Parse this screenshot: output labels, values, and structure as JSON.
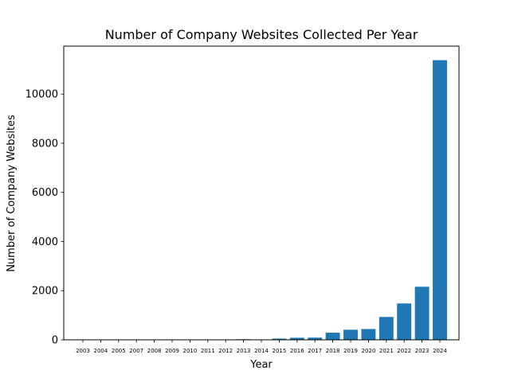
{
  "chart_data": {
    "type": "bar",
    "title": "Number of Company Websites Collected Per Year",
    "xlabel": "Year",
    "ylabel": "Number of Company Websites",
    "categories": [
      "2003",
      "2004",
      "2005",
      "2007",
      "2008",
      "2009",
      "2010",
      "2011",
      "2012",
      "2013",
      "2014",
      "2015",
      "2016",
      "2017",
      "2018",
      "2019",
      "2020",
      "2021",
      "2022",
      "2023",
      "2024"
    ],
    "values": [
      1,
      1,
      1,
      1,
      1,
      2,
      2,
      2,
      5,
      25,
      15,
      50,
      85,
      90,
      290,
      410,
      440,
      930,
      1480,
      2160,
      11380
    ],
    "ylim": [
      0,
      11950
    ],
    "yticks": [
      0,
      2000,
      4000,
      6000,
      8000,
      10000
    ],
    "bar_color": "#1f77b4",
    "grid": false,
    "legend": "none"
  }
}
